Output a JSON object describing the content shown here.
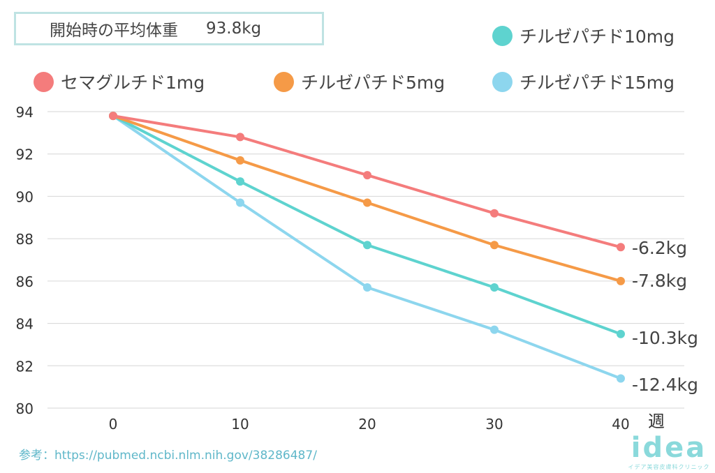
{
  "baseline": {
    "label": "開始時の平均体重",
    "value": "93.8kg"
  },
  "reference": "参考：https://pubmed.ncbi.nlm.nih.gov/38286487/",
  "logo": {
    "word": "idea",
    "sub": "イデア美容皮膚科クリニック"
  },
  "colors": {
    "semaglutide": "#f47c7c",
    "tirz5": "#f59a47",
    "tirz10": "#5ed3cf",
    "tirz15": "#8dd6ee",
    "grid": "#d6d6d6"
  },
  "chart_data": {
    "type": "line",
    "x": [
      0,
      10,
      20,
      30,
      40
    ],
    "xticks": [
      "0",
      "10",
      "20",
      "30",
      "40"
    ],
    "xlabel": "週",
    "ylim": [
      80,
      94
    ],
    "yticks": [
      "80",
      "82",
      "84",
      "86",
      "88",
      "90",
      "92",
      "94"
    ],
    "grid": true,
    "legend": "top",
    "series": [
      {
        "name": "セマグルチド1mg",
        "color": "#f47c7c",
        "values": [
          93.8,
          92.8,
          91.0,
          89.2,
          87.6
        ],
        "end_label": "-6.2kg"
      },
      {
        "name": "チルゼパチド5mg",
        "color": "#f59a47",
        "values": [
          93.8,
          91.7,
          89.7,
          87.7,
          86.0
        ],
        "end_label": "-7.8kg"
      },
      {
        "name": "チルゼパチド10mg",
        "color": "#5ed3cf",
        "values": [
          93.8,
          90.7,
          87.7,
          85.7,
          83.5
        ],
        "end_label": "-10.3kg"
      },
      {
        "name": "チルゼパチド15mg",
        "color": "#8dd6ee",
        "values": [
          93.8,
          89.7,
          85.7,
          83.7,
          81.4
        ],
        "end_label": "-12.4kg"
      }
    ]
  }
}
